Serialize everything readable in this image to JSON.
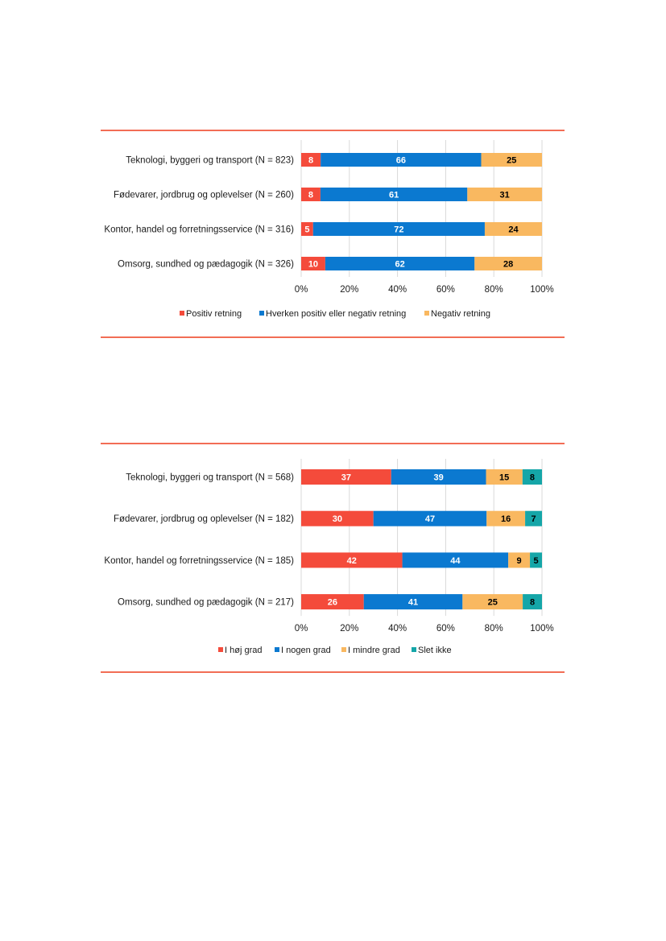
{
  "colors": {
    "rule": "#f26d55",
    "grid": "#d9d9d9"
  },
  "chart_data": [
    {
      "type": "bar",
      "orientation": "horizontal",
      "stacked": true,
      "percent_stacked": true,
      "categories": [
        "Teknologi, byggeri og transport (N = 823)",
        "Fødevarer, jordbrug og oplevelser (N = 260)",
        "Kontor, handel og forretningsservice (N = 316)",
        "Omsorg, sundhed og pædagogik (N = 326)"
      ],
      "series": [
        {
          "name": "Positiv retning",
          "color": "#f44b3b",
          "label_color": "#ffffff",
          "values": [
            8,
            8,
            5,
            10
          ]
        },
        {
          "name": "Hverken positiv eller negativ retning",
          "color": "#0b79d0",
          "label_color": "#ffffff",
          "values": [
            66,
            61,
            72,
            62
          ]
        },
        {
          "name": "Negativ retning",
          "color": "#f9b860",
          "label_color": "#000000",
          "values": [
            25,
            31,
            24,
            28
          ]
        }
      ],
      "xlim": [
        0,
        100
      ],
      "xticks": [
        "0%",
        "20%",
        "40%",
        "60%",
        "80%",
        "100%"
      ],
      "grid": true,
      "legend": "bottom"
    },
    {
      "type": "bar",
      "orientation": "horizontal",
      "stacked": true,
      "percent_stacked": true,
      "categories": [
        "Teknologi, byggeri og transport (N = 568)",
        "Fødevarer, jordbrug og oplevelser (N = 182)",
        "Kontor, handel og forretningsservice (N = 185)",
        "Omsorg, sundhed og pædagogik (N = 217)"
      ],
      "series": [
        {
          "name": "I høj grad",
          "color": "#f44b3b",
          "label_color": "#ffffff",
          "values": [
            37,
            30,
            42,
            26
          ]
        },
        {
          "name": "I nogen grad",
          "color": "#0b79d0",
          "label_color": "#ffffff",
          "values": [
            39,
            47,
            44,
            41
          ]
        },
        {
          "name": "I mindre grad",
          "color": "#f9b860",
          "label_color": "#000000",
          "values": [
            15,
            16,
            9,
            25
          ]
        },
        {
          "name": "Slet ikke",
          "color": "#15a6a8",
          "label_color": "#000000",
          "values": [
            8,
            7,
            5,
            8
          ]
        }
      ],
      "xlim": [
        0,
        100
      ],
      "xticks": [
        "0%",
        "20%",
        "40%",
        "60%",
        "80%",
        "100%"
      ],
      "grid": true,
      "legend": "bottom"
    }
  ]
}
